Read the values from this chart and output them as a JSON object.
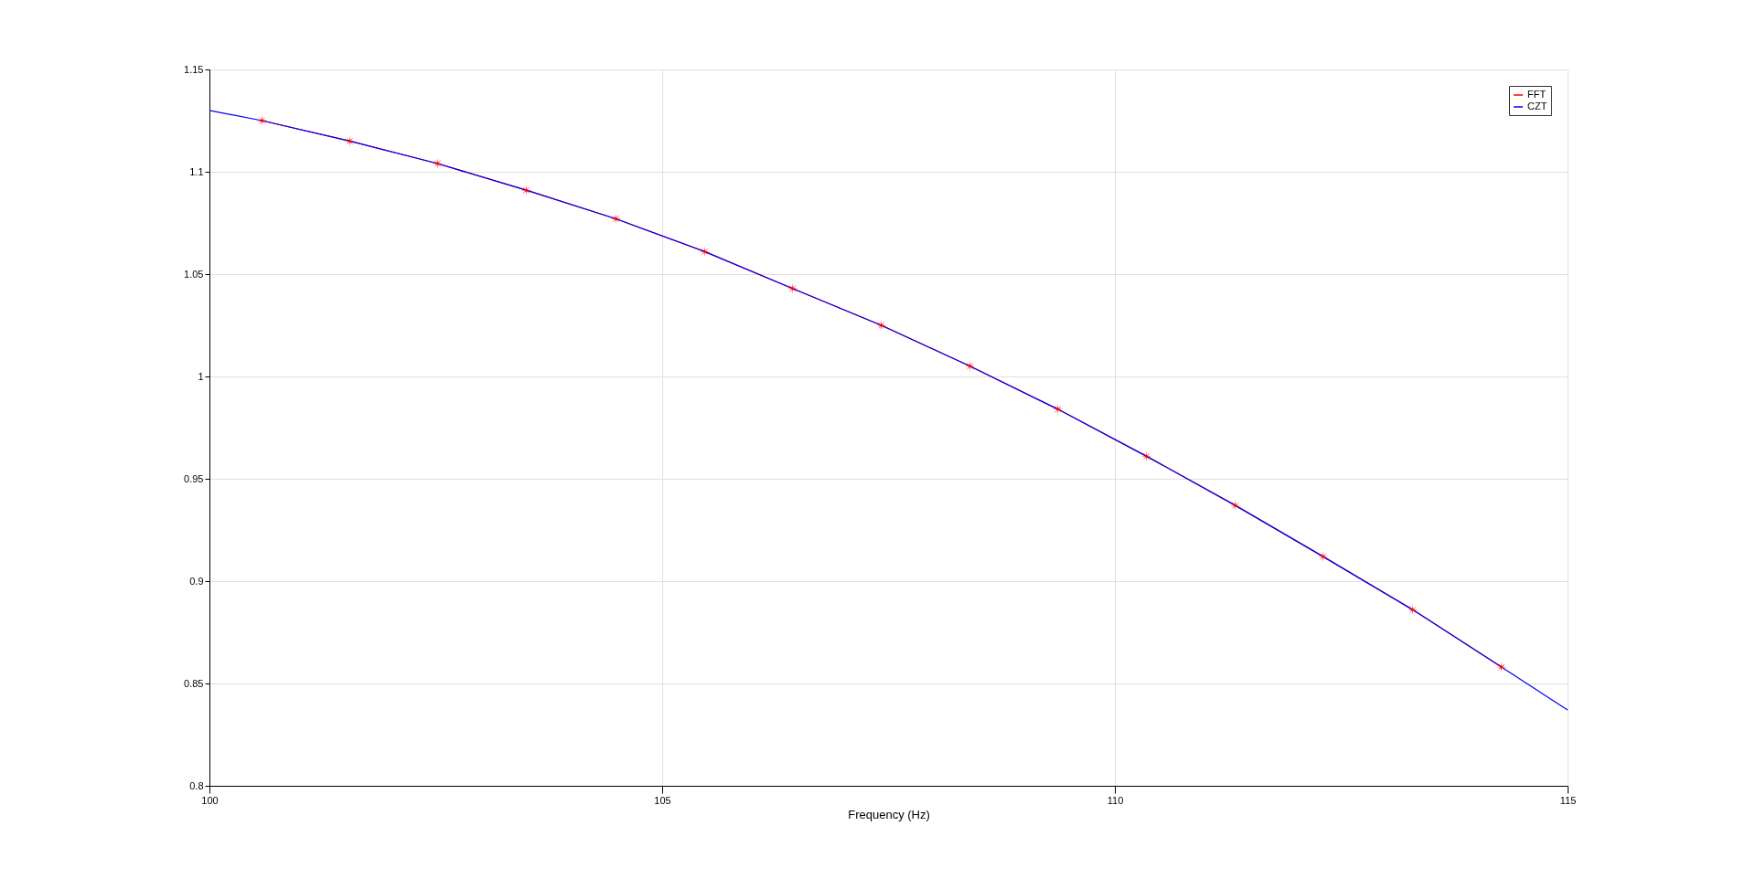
{
  "chart_data": {
    "type": "line",
    "xlabel": "Frequency (Hz)",
    "xlim": [
      100,
      115
    ],
    "xticks": [
      100,
      105,
      110,
      115
    ],
    "ylim": [
      0.8,
      1.15
    ],
    "yticks": [
      0.8,
      0.85,
      0.9,
      0.95,
      1,
      1.05,
      1.1,
      1.15
    ],
    "grid": true,
    "legend": "top right",
    "series": [
      {
        "name": "FFT",
        "color": "#ff0000",
        "marker": "star",
        "x": [
          100.58,
          101.55,
          102.52,
          103.5,
          104.49,
          105.47,
          106.44,
          107.42,
          108.4,
          109.37,
          110.35,
          111.33,
          112.3,
          113.29,
          114.27
        ],
        "values": [
          1.125,
          1.115,
          1.104,
          1.091,
          1.077,
          1.061,
          1.043,
          1.025,
          1.005,
          0.984,
          0.961,
          0.937,
          0.912,
          0.886,
          0.858
        ]
      },
      {
        "name": "CZT",
        "color": "#0000ff",
        "marker": "none",
        "x": [
          100,
          100.58,
          101.55,
          102.52,
          103.5,
          104.49,
          105.47,
          106.44,
          107.42,
          108.4,
          109.37,
          110.35,
          111.33,
          112.3,
          113.29,
          114.27,
          115
        ],
        "values": [
          1.13,
          1.125,
          1.115,
          1.104,
          1.091,
          1.077,
          1.061,
          1.043,
          1.025,
          1.005,
          0.984,
          0.961,
          0.937,
          0.912,
          0.886,
          0.858,
          0.837
        ]
      }
    ]
  }
}
